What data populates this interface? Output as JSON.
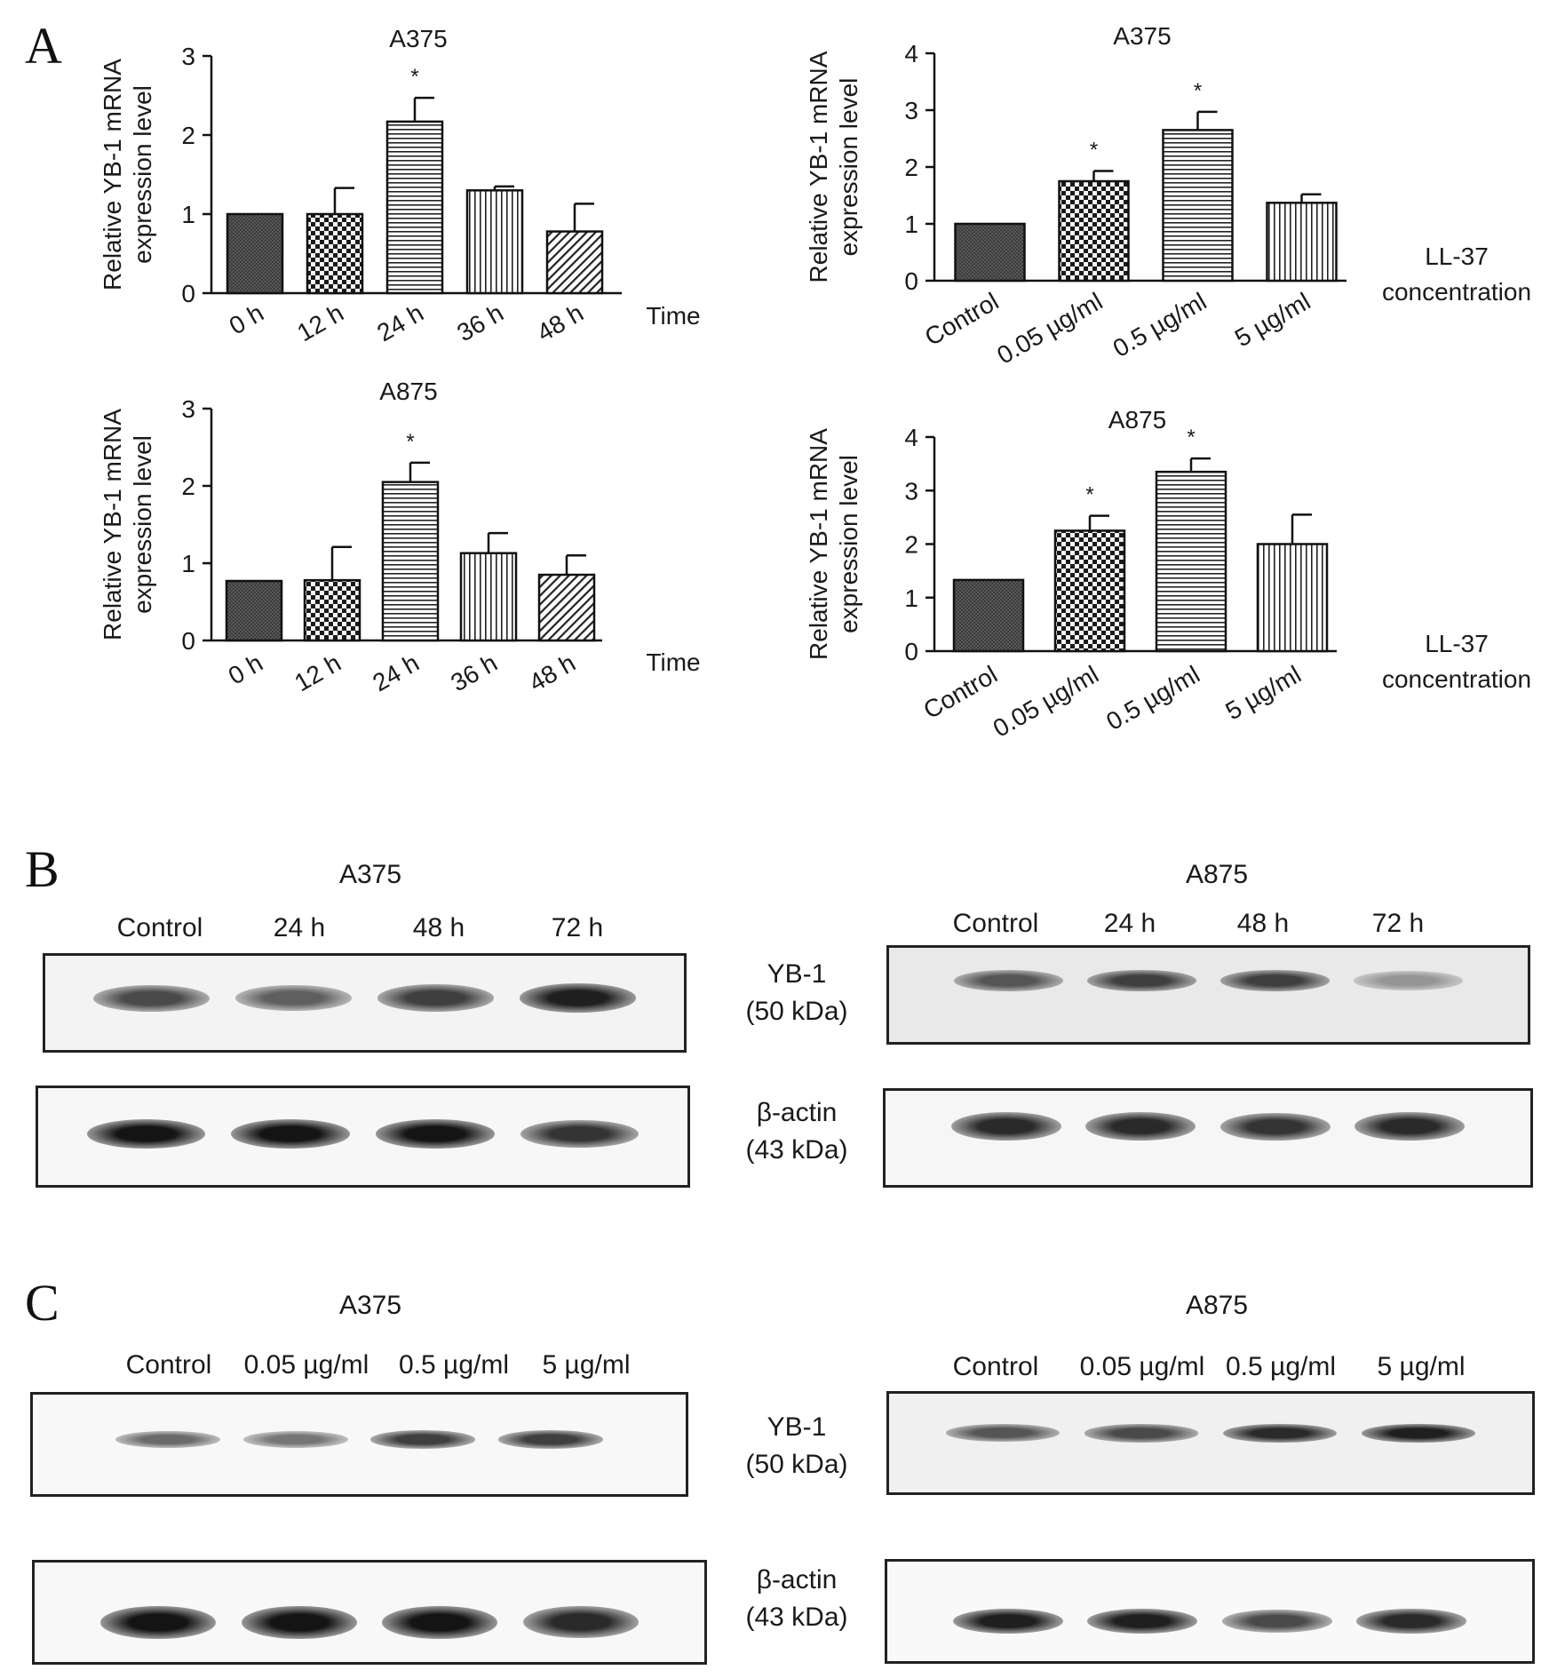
{
  "panel_labels": {
    "A": "A",
    "B": "B",
    "C": "C"
  },
  "chart_data": [
    {
      "type": "bar",
      "title": "A375",
      "ylabel_lines": [
        "Relative YB-1 mRNA",
        "expression level"
      ],
      "xlabel_lines": [
        "Time"
      ],
      "categories": [
        "0 h",
        "12 h",
        "24 h",
        "36 h",
        "48 h"
      ],
      "values": [
        1.0,
        1.0,
        2.17,
        1.3,
        0.78
      ],
      "errors": [
        0,
        0.33,
        0.3,
        0.05,
        0.35
      ],
      "significance": [
        "",
        "",
        "*",
        "",
        ""
      ],
      "patterns": [
        "dark-cross",
        "check",
        "hlines",
        "vlines",
        "diag"
      ],
      "ylim": [
        0,
        3
      ],
      "yticks": [
        0,
        1,
        2,
        3
      ]
    },
    {
      "type": "bar",
      "title": "A375",
      "ylabel_lines": [
        "Relative YB-1 mRNA",
        "expression level"
      ],
      "xlabel_lines": [
        "LL-37",
        "concentration"
      ],
      "categories": [
        "Control",
        "0.05 µg/ml",
        "0.5 µg/ml",
        "5 µg/ml"
      ],
      "values": [
        1.0,
        1.75,
        2.65,
        1.37
      ],
      "errors": [
        0,
        0.18,
        0.32,
        0.15
      ],
      "significance": [
        "",
        "*",
        "*",
        ""
      ],
      "patterns": [
        "dark-cross",
        "check",
        "hlines",
        "vlines"
      ],
      "ylim": [
        0,
        4
      ],
      "yticks": [
        0,
        1,
        2,
        3,
        4
      ]
    },
    {
      "type": "bar",
      "title": "A875",
      "ylabel_lines": [
        "Relative YB-1 mRNA",
        "expression level"
      ],
      "xlabel_lines": [
        "Time"
      ],
      "categories": [
        "0 h",
        "12 h",
        "24 h",
        "36 h",
        "48 h"
      ],
      "values": [
        0.77,
        0.78,
        2.05,
        1.13,
        0.85
      ],
      "errors": [
        0,
        0.43,
        0.25,
        0.26,
        0.25
      ],
      "significance": [
        "",
        "",
        "*",
        "",
        ""
      ],
      "patterns": [
        "dark-cross",
        "check",
        "hlines",
        "vlines",
        "diag"
      ],
      "ylim": [
        0,
        3
      ],
      "yticks": [
        0,
        1,
        2,
        3
      ]
    },
    {
      "type": "bar",
      "title": "A875",
      "ylabel_lines": [
        "Relative YB-1 mRNA",
        "expression level"
      ],
      "xlabel_lines": [
        "LL-37",
        "concentration"
      ],
      "categories": [
        "Control",
        "0.05 µg/ml",
        "0.5 µg/ml",
        "5 µg/ml"
      ],
      "values": [
        1.33,
        2.25,
        3.35,
        2.0
      ],
      "errors": [
        0,
        0.28,
        0.25,
        0.55
      ],
      "significance": [
        "",
        "*",
        "*",
        ""
      ],
      "patterns": [
        "dark-cross",
        "check",
        "hlines",
        "vlines"
      ],
      "ylim": [
        0,
        4
      ],
      "yticks": [
        0,
        1,
        2,
        3,
        4
      ]
    }
  ],
  "blots": {
    "B": {
      "left_title": "A375",
      "right_title": "A875",
      "left_lanes": [
        "Control",
        "24 h",
        "48 h",
        "72 h"
      ],
      "right_lanes": [
        "Control",
        "24 h",
        "48 h",
        "72 h"
      ],
      "yb1_label_lines": [
        "YB-1",
        "(50 kDa)"
      ],
      "actin_label_lines": [
        "β-actin",
        "(43 kDa)"
      ],
      "left_yb1_intensity": [
        0.75,
        0.65,
        0.8,
        0.95
      ],
      "left_actin_intensity": [
        1.0,
        1.0,
        1.0,
        0.85
      ],
      "right_yb1_intensity": [
        0.7,
        0.8,
        0.8,
        0.4
      ],
      "right_actin_intensity": [
        0.9,
        0.9,
        0.85,
        0.9
      ]
    },
    "C": {
      "left_title": "A375",
      "right_title": "A875",
      "left_lanes": [
        "Control",
        "0.05 µg/ml",
        "0.5 µg/ml",
        "5 µg/ml"
      ],
      "right_lanes": [
        "Control",
        "0.05 µg/ml",
        "0.5 µg/ml",
        "5 µg/ml"
      ],
      "yb1_label_lines": [
        "YB-1",
        "(50 kDa)"
      ],
      "actin_label_lines": [
        "β-actin",
        "(43 kDa)"
      ],
      "left_yb1_intensity": [
        0.6,
        0.55,
        0.8,
        0.8
      ],
      "left_actin_intensity": [
        1.0,
        1.0,
        1.0,
        0.9
      ],
      "right_yb1_intensity": [
        0.7,
        0.75,
        0.9,
        0.95
      ],
      "right_actin_intensity": [
        0.95,
        0.95,
        0.75,
        0.9
      ]
    }
  }
}
